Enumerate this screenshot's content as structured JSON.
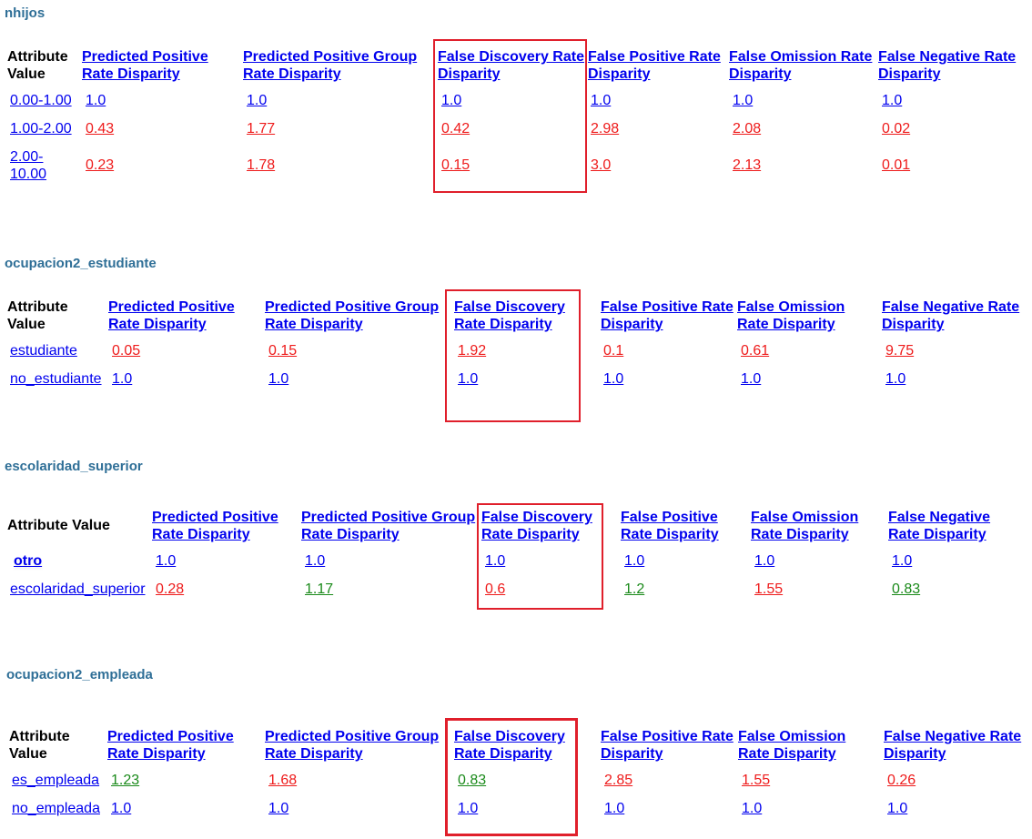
{
  "headers": {
    "attribute_value": "Attribute Value",
    "ppr": "Predicted Positive Rate Disparity",
    "pprev": "Predicted Positive Group Rate Disparity",
    "fdr": "False Discovery Rate Disparity",
    "fpr": "False Positive Rate Disparity",
    "for": "False Omission Rate Disparity",
    "fnr": "False Negative Rate Disparity"
  },
  "colors": {
    "link": "#0000ee",
    "above": "#ee1b1b",
    "below": "#1a8a1a",
    "title": "#2f6f97",
    "highlight": "#e01f2b"
  },
  "sections": [
    {
      "title": "nhijos",
      "rows": [
        {
          "attr": "0.00-1.00",
          "ppr": "1.0",
          "pprev": "1.0",
          "fdr": "1.0",
          "fpr": "1.0",
          "for": "1.0",
          "fnr": "1.0"
        },
        {
          "attr": "1.00-2.00",
          "ppr": "0.43",
          "pprev": "1.77",
          "fdr": "0.42",
          "fpr": "2.98",
          "for": "2.08",
          "fnr": "0.02"
        },
        {
          "attr_line1": "2.00-",
          "attr_line2": "10.00",
          "ppr": "0.23",
          "pprev": "1.78",
          "fdr": "0.15",
          "fpr": "3.0",
          "for": "2.13",
          "fnr": "0.01"
        }
      ]
    },
    {
      "title": "ocupacion2_estudiante",
      "rows": [
        {
          "attr": "estudiante",
          "ppr": "0.05",
          "pprev": "0.15",
          "fdr": "1.92",
          "fpr": "0.1",
          "for": "0.61",
          "fnr": "9.75"
        },
        {
          "attr": "no_estudiante",
          "ppr": "1.0",
          "pprev": "1.0",
          "fdr": "1.0",
          "fpr": "1.0",
          "for": "1.0",
          "fnr": "1.0"
        }
      ]
    },
    {
      "title": "escolaridad_superior",
      "rows": [
        {
          "attr": "otro",
          "ppr": "1.0",
          "pprev": "1.0",
          "fdr": "1.0",
          "fpr": "1.0",
          "for": "1.0",
          "fnr": "1.0"
        },
        {
          "attr": "escolaridad_superior",
          "ppr": "0.28",
          "pprev": "1.17",
          "fdr": "0.6",
          "fpr": "1.2",
          "for": "1.55",
          "fnr": "0.83"
        }
      ]
    },
    {
      "title": "ocupacion2_empleada",
      "rows": [
        {
          "attr": "es_empleada",
          "ppr": "1.23",
          "pprev": "1.68",
          "fdr": "0.83",
          "fpr": "2.85",
          "for": "1.55",
          "fnr": "0.26"
        },
        {
          "attr": "no_empleada",
          "ppr": "1.0",
          "pprev": "1.0",
          "fdr": "1.0",
          "fpr": "1.0",
          "for": "1.0",
          "fnr": "1.0"
        }
      ]
    }
  ]
}
